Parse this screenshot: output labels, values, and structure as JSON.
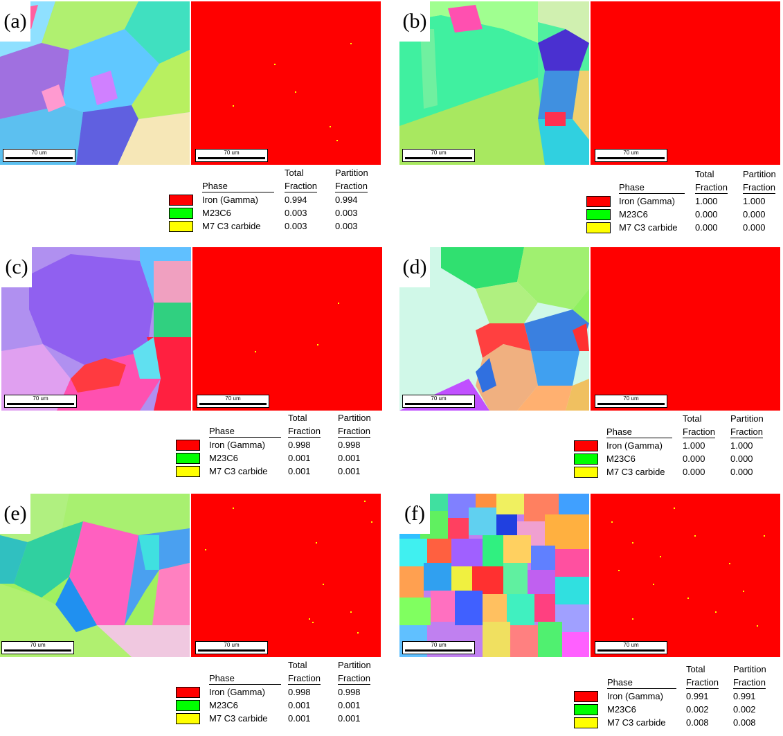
{
  "panels": [
    {
      "label": "(a)",
      "scale": "70 um",
      "phase_scale": "70 um",
      "rows": [
        [
          "Iron (Gamma)",
          "0.994",
          "0.994"
        ],
        [
          "M23C6",
          "0.003",
          "0.003"
        ],
        [
          "M7 C3 carbide",
          "0.003",
          "0.003"
        ]
      ]
    },
    {
      "label": "(b)",
      "scale": "70 um",
      "phase_scale": "70 um",
      "rows": [
        [
          "Iron (Gamma)",
          "1.000",
          "1.000"
        ],
        [
          "M23C6",
          "0.000",
          "0.000"
        ],
        [
          "M7 C3 carbide",
          "0.000",
          "0.000"
        ]
      ]
    },
    {
      "label": "(c)",
      "scale": "70 um",
      "phase_scale": "70 um",
      "rows": [
        [
          "Iron (Gamma)",
          "0.998",
          "0.998"
        ],
        [
          "M23C6",
          "0.001",
          "0.001"
        ],
        [
          "M7 C3 carbide",
          "0.001",
          "0.001"
        ]
      ]
    },
    {
      "label": "(d)",
      "scale": "70 um",
      "phase_scale": "70 um",
      "rows": [
        [
          "Iron (Gamma)",
          "1.000",
          "1.000"
        ],
        [
          "M23C6",
          "0.000",
          "0.000"
        ],
        [
          "M7 C3 carbide",
          "0.000",
          "0.000"
        ]
      ]
    },
    {
      "label": "(e)",
      "scale": "70 um",
      "phase_scale": "70 um",
      "rows": [
        [
          "Iron (Gamma)",
          "0.998",
          "0.998"
        ],
        [
          "M23C6",
          "0.001",
          "0.001"
        ],
        [
          "M7 C3 carbide",
          "0.001",
          "0.001"
        ]
      ]
    },
    {
      "label": "(f)",
      "scale": "70 um",
      "phase_scale": "70 um",
      "rows": [
        [
          "Iron (Gamma)",
          "0.991",
          "0.991"
        ],
        [
          "M23C6",
          "0.002",
          "0.002"
        ],
        [
          "M7 C3 carbide",
          "0.008",
          "0.008"
        ]
      ]
    }
  ],
  "legend_headers": {
    "phase": "Phase",
    "total_line1": "Total",
    "total_line2": "Fraction",
    "partition_line1": "Partition",
    "partition_line2": "Fraction"
  },
  "colors": {
    "iron_gamma": "#ff0000",
    "m23c6": "#00ff00",
    "m7c3": "#ffff00"
  }
}
